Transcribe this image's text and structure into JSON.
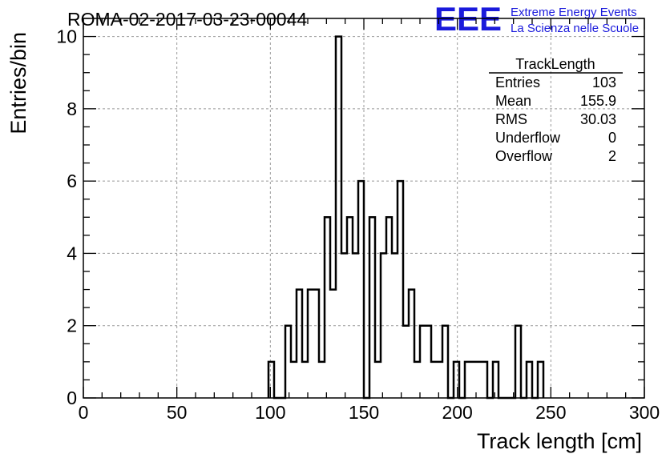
{
  "chart_data": {
    "type": "bar",
    "title": "ROMA-02-2017-03-23-00044",
    "xlabel": "Track length [cm]",
    "ylabel": "Entries/bin",
    "xlim": [
      0,
      300
    ],
    "ylim": [
      0,
      10.5
    ],
    "x_ticks": [
      "0",
      "50",
      "100",
      "150",
      "200",
      "250",
      "300"
    ],
    "y_ticks": [
      "0",
      "2",
      "4",
      "6",
      "8",
      "10"
    ],
    "grid": true,
    "bin_width": 3,
    "bins": [
      {
        "x": 99,
        "y": 1
      },
      {
        "x": 102,
        "y": 0
      },
      {
        "x": 105,
        "y": 0
      },
      {
        "x": 108,
        "y": 2
      },
      {
        "x": 111,
        "y": 1
      },
      {
        "x": 114,
        "y": 3
      },
      {
        "x": 117,
        "y": 1
      },
      {
        "x": 120,
        "y": 3
      },
      {
        "x": 123,
        "y": 3
      },
      {
        "x": 126,
        "y": 1
      },
      {
        "x": 129,
        "y": 5
      },
      {
        "x": 132,
        "y": 3
      },
      {
        "x": 135,
        "y": 10
      },
      {
        "x": 138,
        "y": 4
      },
      {
        "x": 141,
        "y": 5
      },
      {
        "x": 144,
        "y": 4
      },
      {
        "x": 147,
        "y": 6
      },
      {
        "x": 150,
        "y": 0
      },
      {
        "x": 153,
        "y": 5
      },
      {
        "x": 156,
        "y": 1
      },
      {
        "x": 159,
        "y": 4
      },
      {
        "x": 162,
        "y": 5
      },
      {
        "x": 165,
        "y": 4
      },
      {
        "x": 168,
        "y": 6
      },
      {
        "x": 171,
        "y": 2
      },
      {
        "x": 174,
        "y": 3
      },
      {
        "x": 177,
        "y": 1
      },
      {
        "x": 180,
        "y": 2
      },
      {
        "x": 183,
        "y": 2
      },
      {
        "x": 186,
        "y": 1
      },
      {
        "x": 189,
        "y": 1
      },
      {
        "x": 192,
        "y": 2
      },
      {
        "x": 195,
        "y": 0
      },
      {
        "x": 198,
        "y": 1
      },
      {
        "x": 201,
        "y": 0
      },
      {
        "x": 204,
        "y": 1
      },
      {
        "x": 207,
        "y": 1
      },
      {
        "x": 210,
        "y": 1
      },
      {
        "x": 213,
        "y": 1
      },
      {
        "x": 216,
        "y": 0
      },
      {
        "x": 219,
        "y": 1
      },
      {
        "x": 222,
        "y": 0
      },
      {
        "x": 225,
        "y": 0
      },
      {
        "x": 228,
        "y": 0
      },
      {
        "x": 231,
        "y": 2
      },
      {
        "x": 234,
        "y": 0
      },
      {
        "x": 237,
        "y": 1
      },
      {
        "x": 240,
        "y": 0
      },
      {
        "x": 243,
        "y": 1
      }
    ],
    "stats_box": {
      "title": "TrackLength",
      "rows": [
        {
          "label": "Entries",
          "value": "103"
        },
        {
          "label": "Mean",
          "value": "155.9"
        },
        {
          "label": "RMS",
          "value": "30.03"
        },
        {
          "label": "Underflow",
          "value": "0"
        },
        {
          "label": "Overflow",
          "value": "2"
        }
      ]
    },
    "logo": {
      "text": "EEE",
      "line1": "Extreme Energy Events",
      "line2": "La Scienza nelle Scuole",
      "color": "#1a1adc"
    },
    "colors": {
      "line": "#000000",
      "grid": "#999999"
    }
  }
}
